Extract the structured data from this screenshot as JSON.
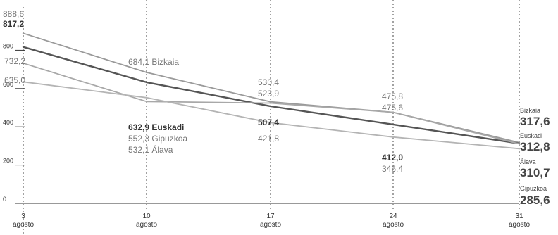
{
  "chart_data": {
    "type": "line",
    "title": "",
    "xlabel": "",
    "ylabel": "",
    "ylim": [
      0,
      900
    ],
    "yticks": [
      "0",
      "200",
      "400",
      "600",
      "800"
    ],
    "x": [
      {
        "day": "3",
        "month": "agosto"
      },
      {
        "day": "10",
        "month": "agosto"
      },
      {
        "day": "17",
        "month": "agosto"
      },
      {
        "day": "24",
        "month": "agosto"
      },
      {
        "day": "31",
        "month": "agosto"
      }
    ],
    "grid": "dashed vertical lines at 10, 17, 24 and 31 agosto",
    "series": [
      {
        "name": "Bizkaia",
        "color": "#9a9a9a",
        "values": [
          888.6,
          684.1,
          530.4,
          475.8,
          317.6
        ]
      },
      {
        "name": "Euskadi",
        "color": "#555555",
        "values": [
          817.2,
          632.9,
          507.4,
          412.0,
          312.8
        ]
      },
      {
        "name": "Álava",
        "color": "#a8a8a8",
        "values": [
          732.2,
          532.1,
          523.9,
          475.6,
          310.7
        ]
      },
      {
        "name": "Gipuzkoa",
        "color": "#b4b4b4",
        "values": [
          635.0,
          552.3,
          421.8,
          346.4,
          285.6
        ]
      }
    ],
    "annotations": {
      "start": [
        "888,6",
        "817,2",
        "732,2",
        "635,0"
      ],
      "bizkaia_10": "684,1 Bizkaia",
      "euskadi_10": "632,9 Euskadi",
      "gipuzkoa_10": "552,3 Gipuzkoa",
      "alava_10": "532,1 Álava",
      "bizkaia_17": "530,4",
      "alava_17": "523,9",
      "euskadi_17": "507,4",
      "gipuzkoa_17": "421,8",
      "bizkaia_24": "475,8",
      "alava_24": "475,6",
      "euskadi_24": "412,0",
      "gipuzkoa_24": "346,4"
    },
    "end_labels": [
      {
        "name": "Bizkaia",
        "value": "317,6"
      },
      {
        "name": "Euskadi",
        "value": "312,8"
      },
      {
        "name": "Álava",
        "value": "310,7"
      },
      {
        "name": "Gipuzkoa",
        "value": "285,6"
      }
    ]
  }
}
